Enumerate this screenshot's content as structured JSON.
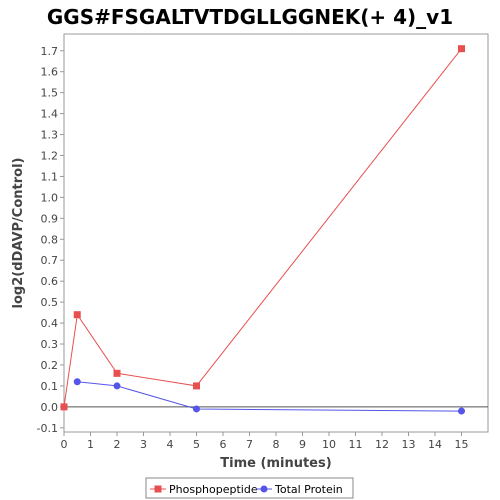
{
  "chart_data": {
    "type": "line",
    "title": "GGS#FSGALTVTDGLLGGNEK(+ 4)_v1",
    "xlabel": "Time (minutes)",
    "ylabel": "log2(dDAVP/Control)",
    "xlim": [
      0,
      16
    ],
    "ylim": [
      -0.12,
      1.78
    ],
    "x_ticks": [
      0,
      1,
      2,
      3,
      4,
      5,
      6,
      7,
      8,
      9,
      10,
      11,
      12,
      13,
      14,
      15
    ],
    "y_ticks": [
      -0.1,
      0.0,
      0.1,
      0.2,
      0.3,
      0.4,
      0.5,
      0.6,
      0.7,
      0.8,
      0.9,
      1.0,
      1.1,
      1.2,
      1.3,
      1.4,
      1.5,
      1.6,
      1.7
    ],
    "y_tick_labels": [
      "-0.1",
      "0.0",
      "0.1",
      "0.2",
      "0.3",
      "0.4",
      "0.5",
      "0.6",
      "0.7",
      "0.8",
      "0.9",
      "1.0",
      "1.1",
      "1.2",
      "1.3",
      "1.4",
      "1.5",
      "1.6",
      "1.7"
    ],
    "grid": false,
    "legend_position": "bottom",
    "series": [
      {
        "name": "Phosphopeptide",
        "color": "#e8504f",
        "marker": "square",
        "x": [
          0,
          0.5,
          2,
          5,
          15
        ],
        "y": [
          0.0,
          0.44,
          0.16,
          0.1,
          1.71
        ]
      },
      {
        "name": "Total Protein",
        "color": "#5555e8",
        "marker": "circle",
        "x": [
          0.5,
          2,
          5,
          15
        ],
        "y": [
          0.12,
          0.1,
          -0.01,
          -0.02
        ]
      }
    ]
  }
}
